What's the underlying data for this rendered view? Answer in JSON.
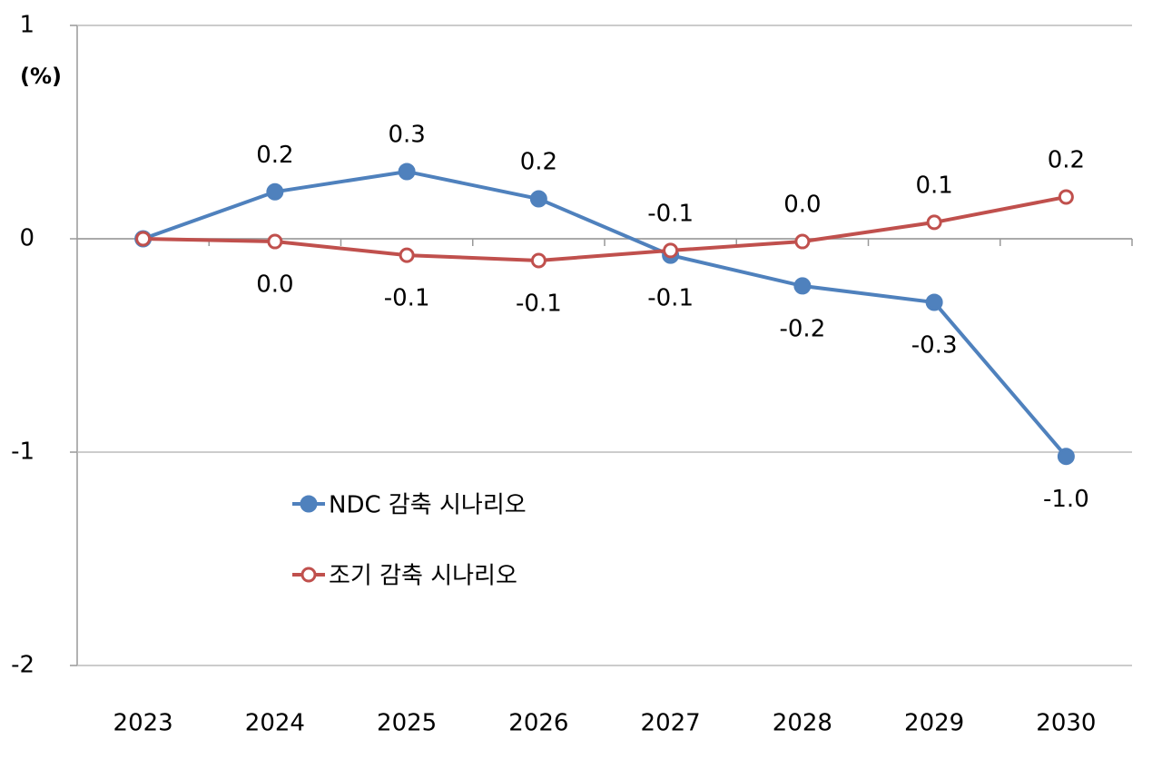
{
  "chart_data": {
    "type": "line",
    "y_label": "(%)",
    "categories": [
      "2023",
      "2024",
      "2025",
      "2026",
      "2027",
      "2028",
      "2029",
      "2030"
    ],
    "series": [
      {
        "name": "NDC 감축 시나리오",
        "color": "#4f81bd",
        "marker": "filled",
        "values": [
          0,
          0.22,
          0.315,
          0.187,
          -0.077,
          -0.221,
          -0.298,
          -1.02
        ],
        "value_labels": [
          null,
          "0.2",
          "0.3",
          "0.2",
          "-0.1",
          "-0.2",
          "-0.3",
          "-1.0"
        ]
      },
      {
        "name": "조기 감축 시나리오",
        "color": "#c0504d",
        "marker": "hollow",
        "values": [
          0,
          -0.013,
          -0.077,
          -0.102,
          -0.055,
          -0.013,
          0.077,
          0.196
        ],
        "value_labels": [
          null,
          "0.0",
          "-0.1",
          "-0.1",
          "-0.1",
          "0.0",
          "0.1",
          "0.2"
        ]
      }
    ],
    "ylim": [
      -2,
      1
    ],
    "yticks": [
      1,
      0,
      -1,
      -2
    ],
    "grid": true
  }
}
